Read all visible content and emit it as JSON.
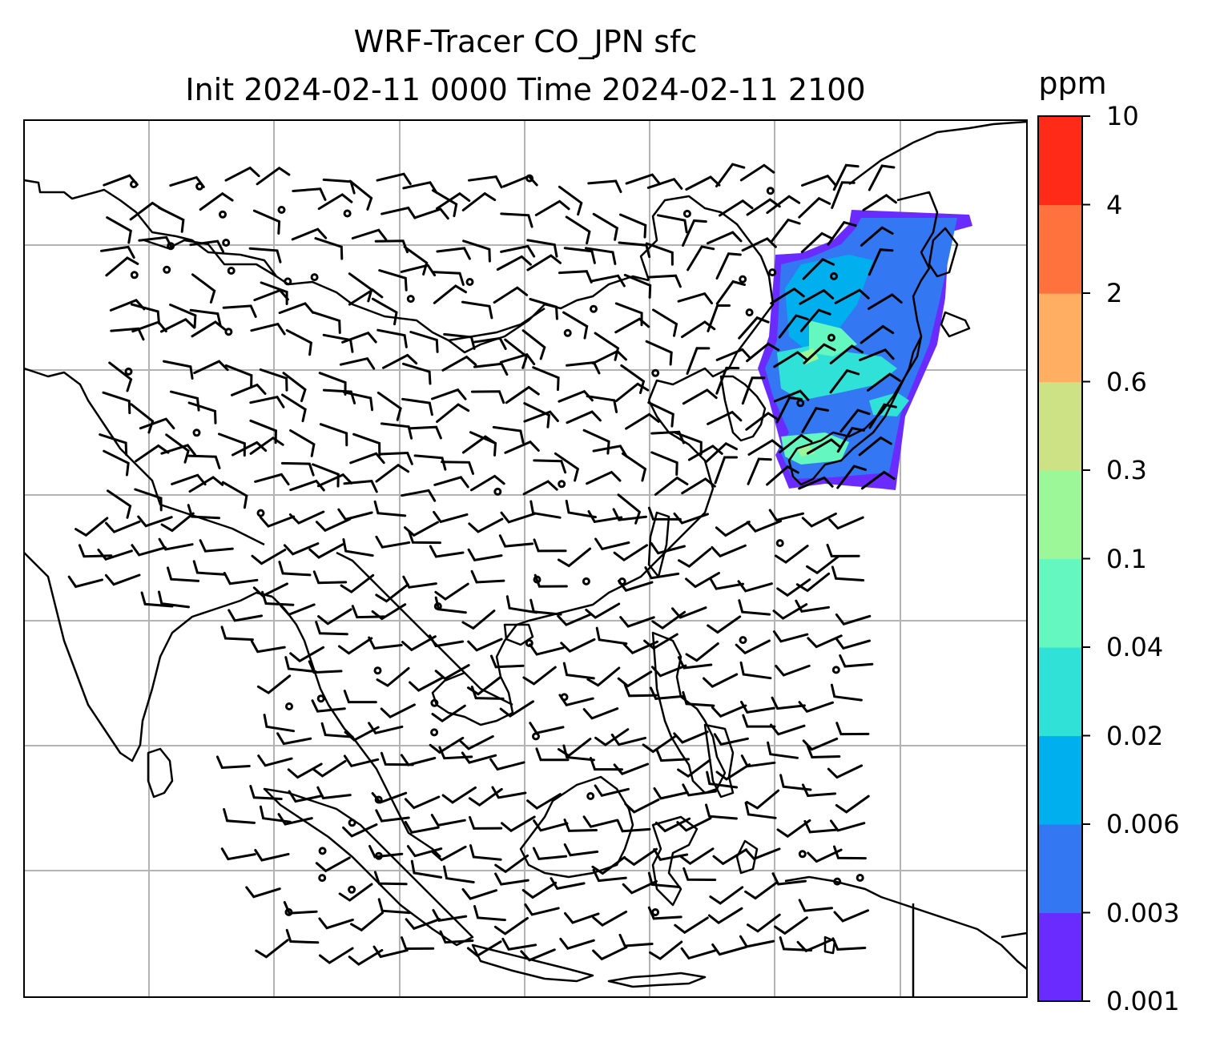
{
  "title": {
    "line1": "WRF-Tracer CO_JPN sfc",
    "line2": "Init 2024-02-11 0000 Time 2024-02-11 2100"
  },
  "map": {
    "type": "tracer-concentration-with-wind-barbs",
    "region": "East and Southeast Asia",
    "gridlines": true,
    "wind_barbs": true,
    "plume_location": "over Japan"
  },
  "colorbar": {
    "unit": "ppm",
    "ticks": [
      "0.001",
      "0.003",
      "0.006",
      "0.02",
      "0.04",
      "0.1",
      "0.3",
      "0.6",
      "2",
      "4",
      "10"
    ],
    "bin_colors": [
      "#6a2bff",
      "#3377f2",
      "#00b0ee",
      "#2fe1d6",
      "#64f7c0",
      "#9bf797",
      "#cde284",
      "#ffae62",
      "#ff723e",
      "#ff2a18"
    ]
  }
}
